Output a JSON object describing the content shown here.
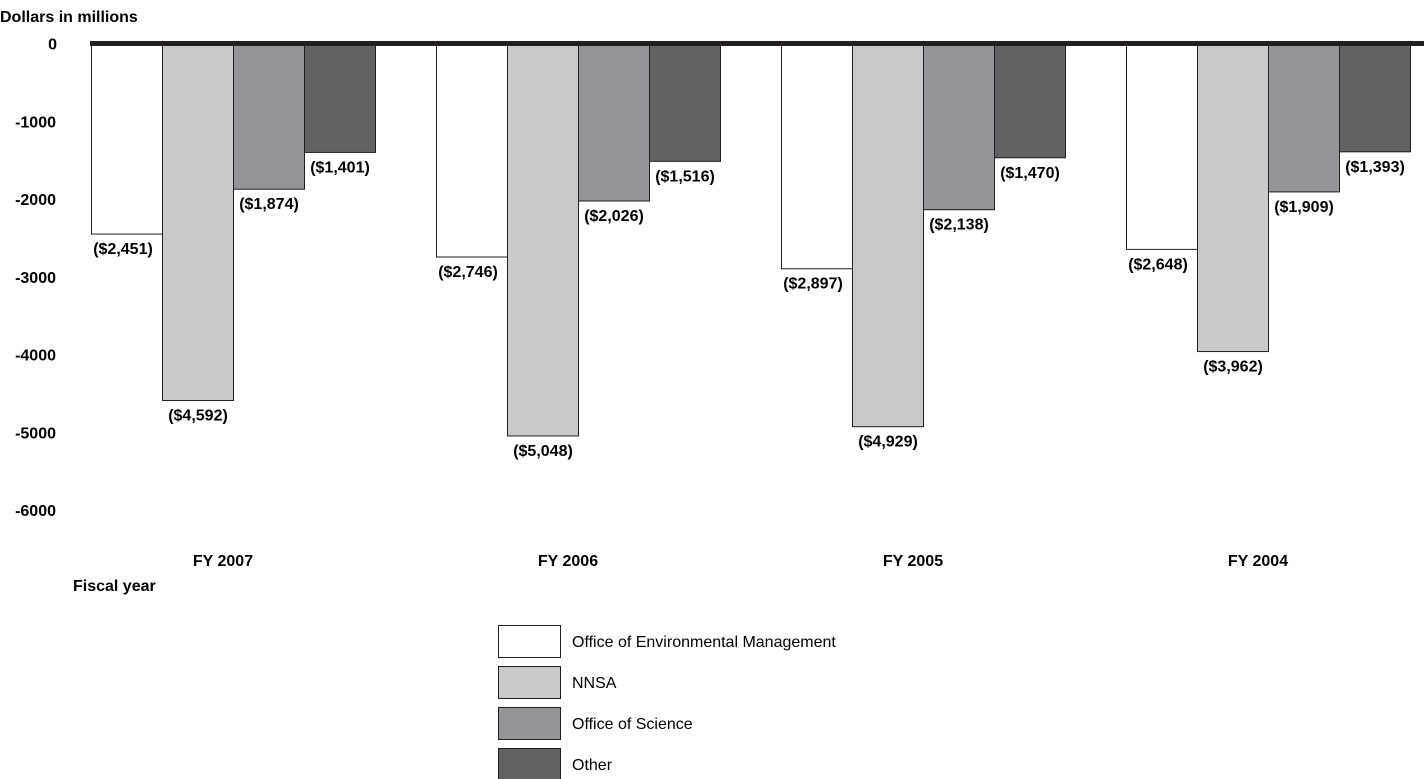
{
  "chart_data": {
    "type": "bar",
    "ylabel": "Dollars in millions",
    "xlabel": "Fiscal year",
    "ylim": [
      -6000,
      0
    ],
    "yticks": [
      0,
      -1000,
      -2000,
      -3000,
      -4000,
      -5000,
      -6000
    ],
    "ytick_labels": [
      "0",
      "-1000",
      "-2000",
      "-3000",
      "-4000",
      "-5000",
      "-6000"
    ],
    "grid": false,
    "legend_position": "bottom-center",
    "categories": [
      "FY 2007",
      "FY 2006",
      "FY 2005",
      "FY 2004"
    ],
    "series": [
      {
        "name": "Office of Environmental Management",
        "color": "#ffffff",
        "values": [
          -2451,
          -2746,
          -2897,
          -2648
        ],
        "labels": [
          "($2,451)",
          "($2,746)",
          "($2,897)",
          "($2,648)"
        ]
      },
      {
        "name": "NNSA",
        "color": "#c8c9cb",
        "values": [
          -4592,
          -5048,
          -4929,
          -3962
        ],
        "labels": [
          "($4,592)",
          "($5,048)",
          "($4,929)",
          "($3,962)"
        ]
      },
      {
        "name": "Office of Science",
        "color": "#939598",
        "values": [
          -1874,
          -2026,
          -2138,
          -1909
        ],
        "labels": [
          "($1,874)",
          "($2,026)",
          "($2,138)",
          "($1,909)"
        ]
      },
      {
        "name": "Other",
        "color": "#616264",
        "values": [
          -1401,
          -1516,
          -1470,
          -1393
        ],
        "labels": [
          "($1,401)",
          "($1,516)",
          "($1,470)",
          "($1,393)"
        ]
      }
    ]
  }
}
